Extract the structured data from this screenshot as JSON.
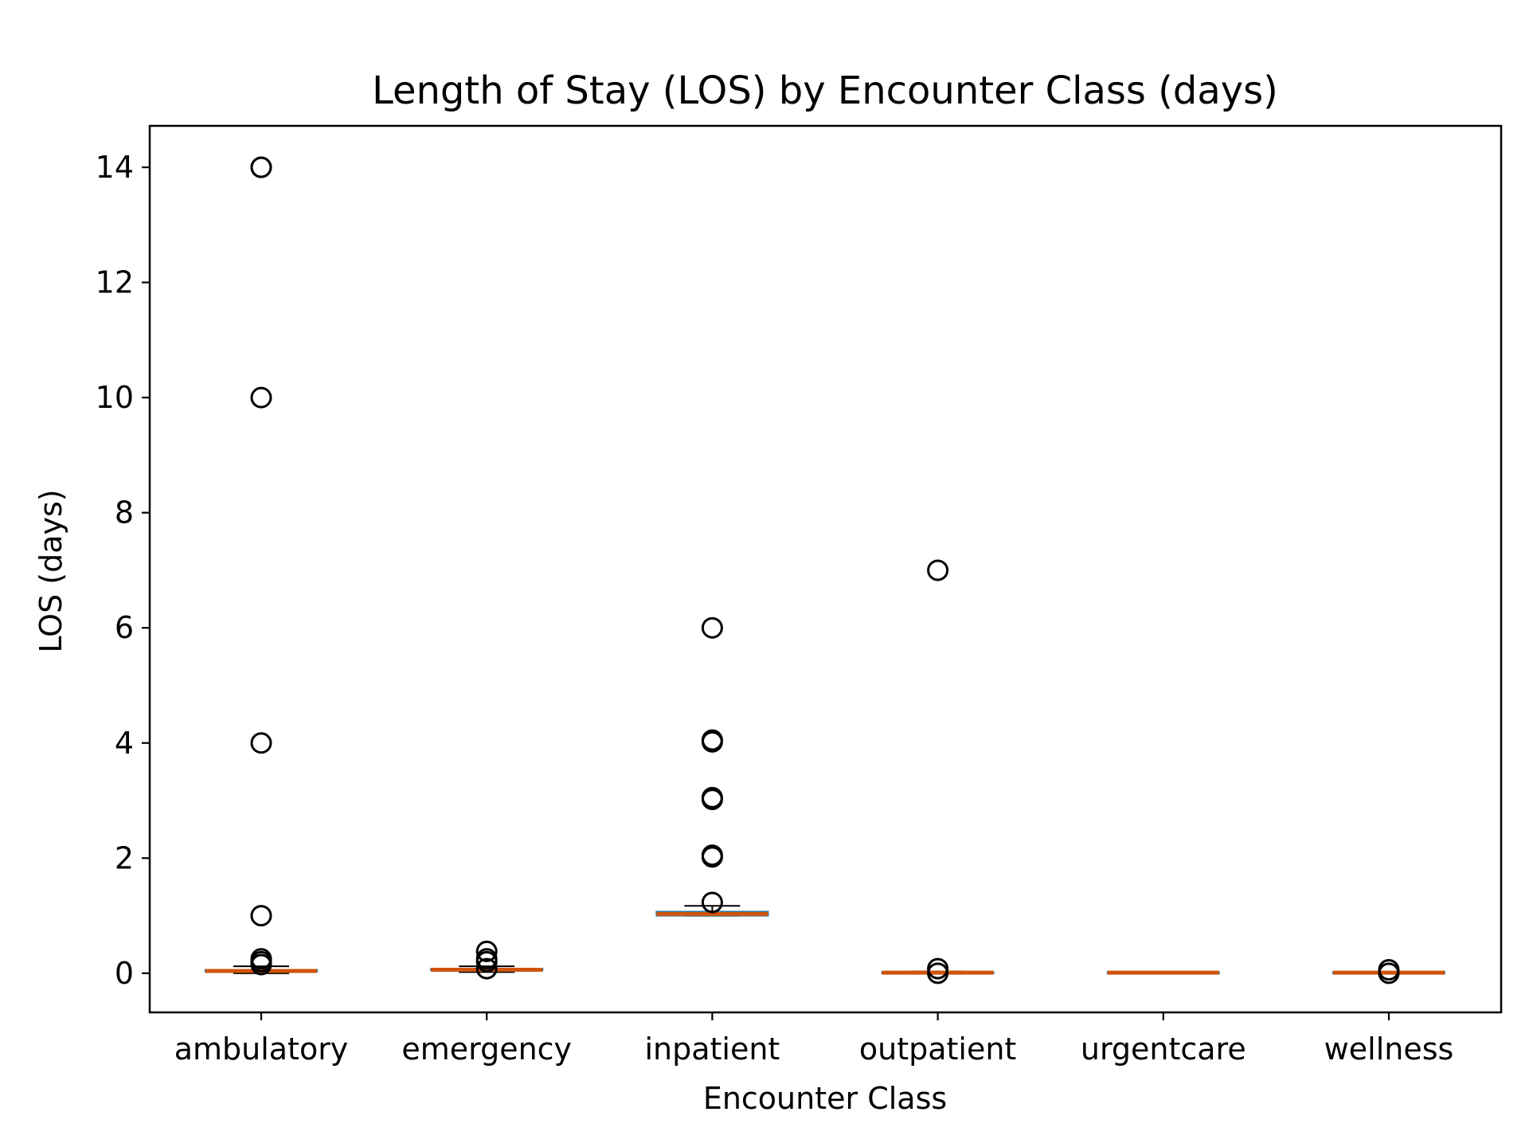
{
  "chart_data": {
    "type": "box",
    "title": "Length of Stay (LOS) by Encounter Class (days)",
    "xlabel": "Encounter Class",
    "ylabel": "LOS (days)",
    "ylim": [
      -0.68,
      14.72
    ],
    "yticks": [
      0,
      2,
      4,
      6,
      8,
      10,
      12,
      14
    ],
    "grid": false,
    "categories": [
      "ambulatory",
      "emergency",
      "inpatient",
      "outpatient",
      "urgentcare",
      "wellness"
    ],
    "boxes": [
      {
        "category": "ambulatory",
        "q1": 0.03,
        "median": 0.04,
        "q3": 0.06,
        "whisker_low": 0.0,
        "whisker_high": 0.12,
        "outliers": [
          14.0,
          14.0,
          10.0,
          4.0,
          1.0,
          0.25,
          0.2,
          0.15
        ]
      },
      {
        "category": "emergency",
        "q1": 0.05,
        "median": 0.06,
        "q3": 0.08,
        "whisker_low": 0.02,
        "whisker_high": 0.12,
        "outliers": [
          0.38,
          0.25,
          0.2,
          0.08
        ]
      },
      {
        "category": "inpatient",
        "q1": 1.0,
        "median": 1.03,
        "q3": 1.07,
        "whisker_low": 1.0,
        "whisker_high": 1.17,
        "outliers": [
          6.0,
          4.05,
          4.02,
          3.05,
          3.02,
          2.05,
          2.02,
          1.23
        ]
      },
      {
        "category": "outpatient",
        "q1": 0.0,
        "median": 0.01,
        "q3": 0.02,
        "whisker_low": 0.0,
        "whisker_high": 0.03,
        "outliers": [
          7.0,
          0.08,
          0.0
        ]
      },
      {
        "category": "urgentcare",
        "q1": 0.0,
        "median": 0.01,
        "q3": 0.02,
        "whisker_low": 0.0,
        "whisker_high": 0.02,
        "outliers": []
      },
      {
        "category": "wellness",
        "q1": 0.0,
        "median": 0.01,
        "q3": 0.02,
        "whisker_low": 0.0,
        "whisker_high": 0.02,
        "outliers": [
          0.06,
          0.0
        ]
      }
    ],
    "colors": {
      "box": "#1f77b4",
      "median": "#d0540c",
      "outlier": "#000000",
      "whisker": "#000000"
    }
  }
}
